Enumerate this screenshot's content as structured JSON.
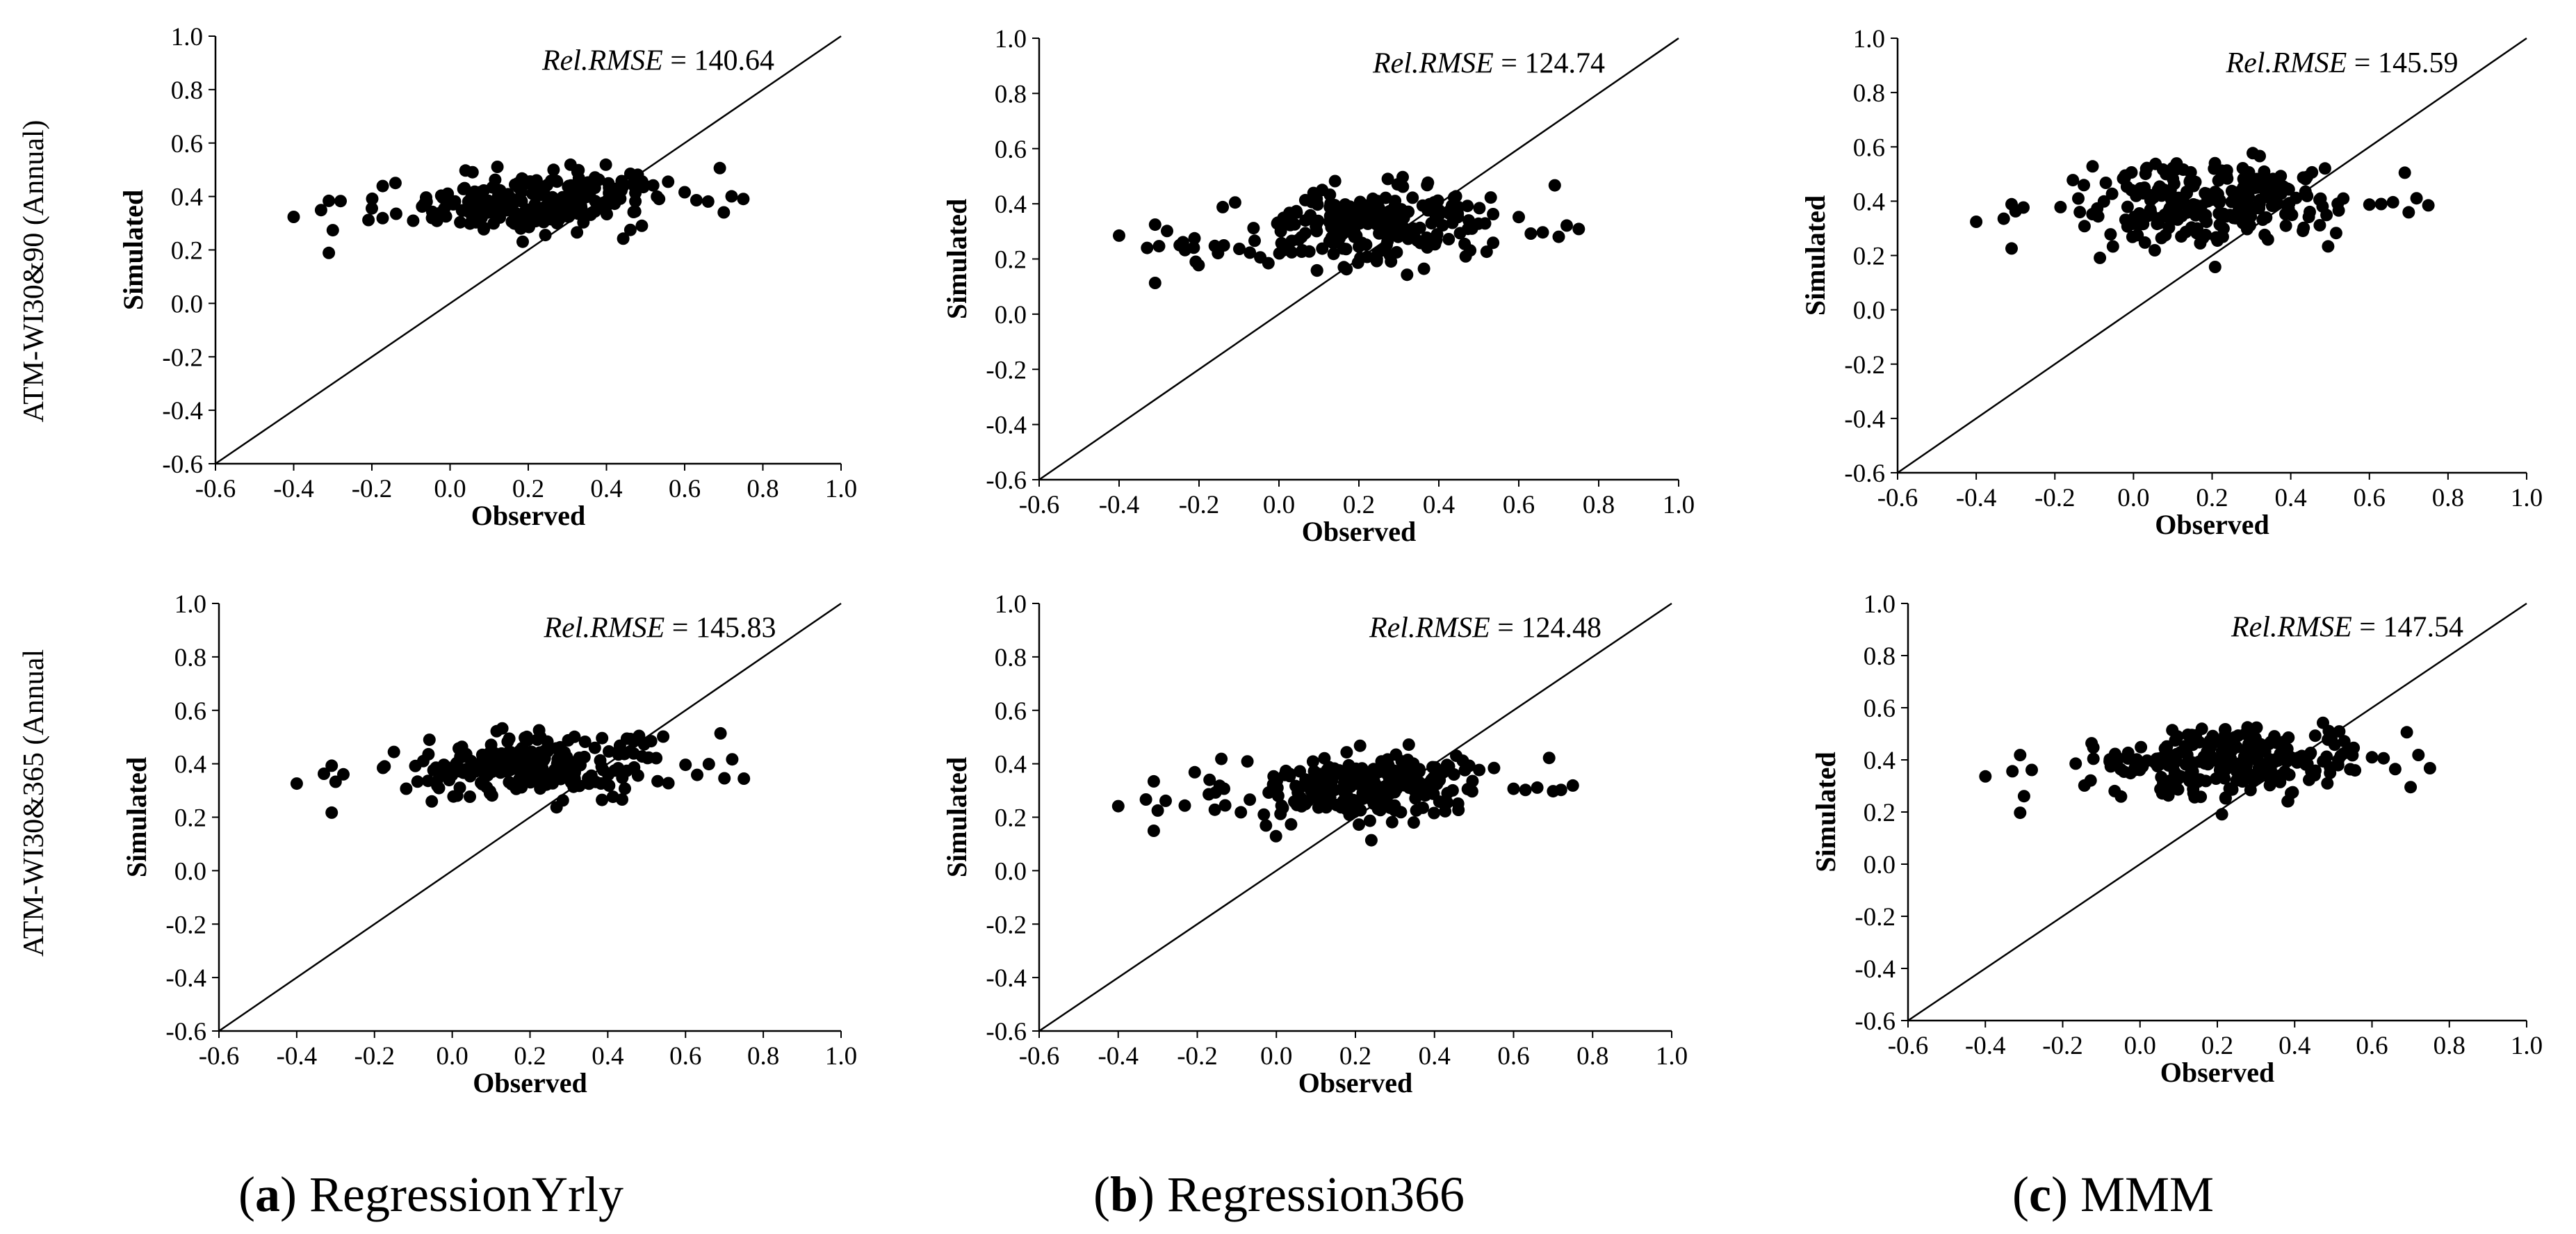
{
  "figure": {
    "row_labels": [
      "ATM-WI30&90 (Annual)",
      "ATM-WI30&365 (Annual"
    ],
    "captions": [
      {
        "letter": "a",
        "text": "RegressionYrly"
      },
      {
        "letter": "b",
        "text": "Regression366"
      },
      {
        "letter": "c",
        "text": "MMM"
      }
    ],
    "annotation_prefix": "Rel.RMSE",
    "annotation_eq": " = "
  },
  "chart_data": [
    {
      "id": "a1",
      "type": "scatter",
      "xlabel": "Observed",
      "ylabel": "Simulated",
      "xlim": [
        -0.6,
        1.0
      ],
      "ylim": [
        -0.6,
        1.0
      ],
      "ticks": [
        "-0.6",
        "-0.4",
        "-0.2",
        "0.0",
        "0.2",
        "0.4",
        "0.6",
        "0.8",
        "1.0"
      ],
      "identity_line": true,
      "rel_rmse": "140.64",
      "y_center": 0.38,
      "y_spread": 0.055,
      "seed": 11
    },
    {
      "id": "b1",
      "type": "scatter",
      "xlabel": "Observed",
      "ylabel": "Simulated",
      "xlim": [
        -0.6,
        1.0
      ],
      "ylim": [
        -0.6,
        1.0
      ],
      "ticks": [
        "-0.6",
        "-0.4",
        "-0.2",
        "0.0",
        "0.2",
        "0.4",
        "0.6",
        "0.8",
        "1.0"
      ],
      "identity_line": true,
      "rel_rmse": "124.74",
      "y_center": 0.31,
      "y_spread": 0.07,
      "seed": 23
    },
    {
      "id": "c1",
      "type": "scatter",
      "xlabel": "Observed",
      "ylabel": "Simulated",
      "xlim": [
        -0.6,
        1.0
      ],
      "ylim": [
        -0.6,
        1.0
      ],
      "ticks": [
        "-0.6",
        "-0.4",
        "-0.2",
        "0.0",
        "0.2",
        "0.4",
        "0.6",
        "0.8",
        "1.0"
      ],
      "identity_line": true,
      "rel_rmse": "145.59",
      "y_center": 0.39,
      "y_spread": 0.075,
      "seed": 37
    },
    {
      "id": "a2",
      "type": "scatter",
      "xlabel": "Observed",
      "ylabel": "Simulated",
      "xlim": [
        -0.6,
        1.0
      ],
      "ylim": [
        -0.6,
        1.0
      ],
      "ticks": [
        "-0.6",
        "-0.4",
        "-0.2",
        "0.0",
        "0.2",
        "0.4",
        "0.6",
        "0.8",
        "1.0"
      ],
      "identity_line": true,
      "rel_rmse": "145.83",
      "y_center": 0.39,
      "y_spread": 0.055,
      "seed": 41
    },
    {
      "id": "b2",
      "type": "scatter",
      "xlabel": "Observed",
      "ylabel": "Simulated",
      "xlim": [
        -0.6,
        1.0
      ],
      "ylim": [
        -0.6,
        1.0
      ],
      "ticks": [
        "-0.6",
        "-0.4",
        "-0.2",
        "0.0",
        "0.2",
        "0.4",
        "0.6",
        "0.8",
        "1.0"
      ],
      "identity_line": true,
      "rel_rmse": "124.48",
      "y_center": 0.31,
      "y_spread": 0.07,
      "seed": 53
    },
    {
      "id": "c2",
      "type": "scatter",
      "xlabel": "Observed",
      "ylabel": "Simulated",
      "xlim": [
        -0.6,
        1.0
      ],
      "ylim": [
        -0.6,
        1.0
      ],
      "ticks": [
        "-0.6",
        "-0.4",
        "-0.2",
        "0.0",
        "0.2",
        "0.4",
        "0.6",
        "0.8",
        "1.0"
      ],
      "identity_line": true,
      "rel_rmse": "147.54",
      "y_center": 0.38,
      "y_spread": 0.07,
      "seed": 67
    }
  ]
}
